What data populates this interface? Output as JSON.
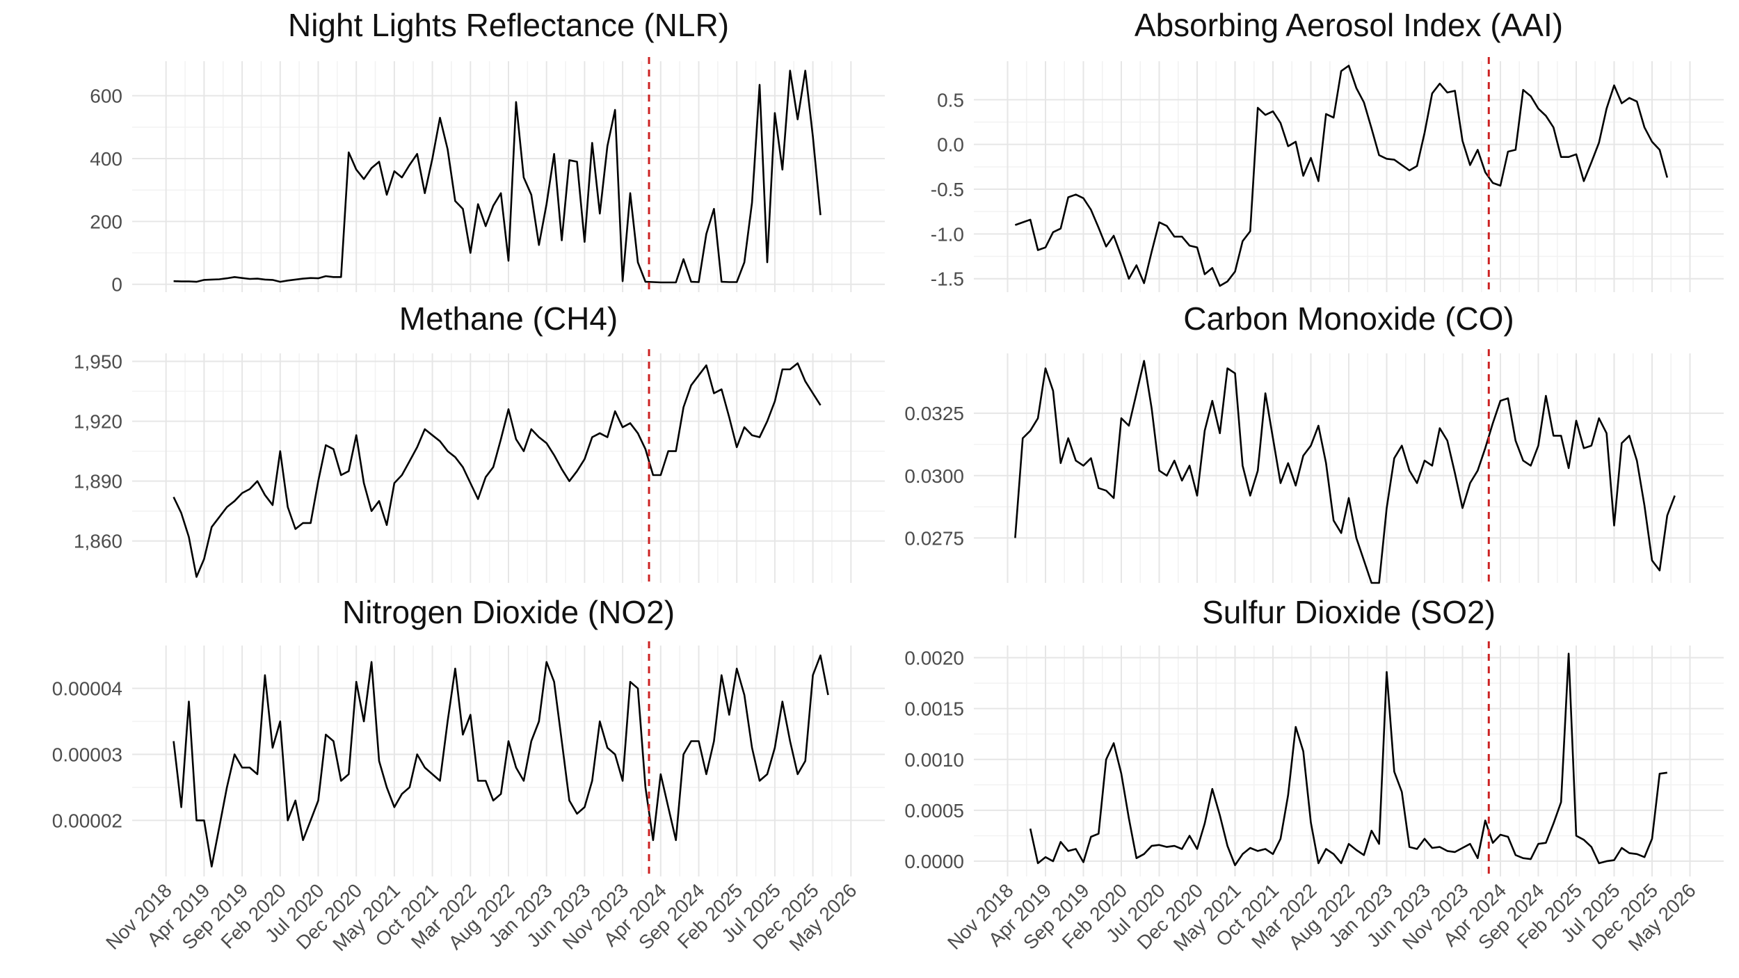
{
  "colors": {
    "series": "#000000",
    "event_line": "#cc2222",
    "grid": "#e6e6e6",
    "background": "#ffffff"
  },
  "x_axis": {
    "start": "2018-11",
    "end": "2026-05",
    "tick_dates": [
      "2018-11",
      "2019-04",
      "2019-09",
      "2020-02",
      "2020-07",
      "2020-12",
      "2021-05",
      "2021-10",
      "2022-03",
      "2022-08",
      "2023-01",
      "2023-06",
      "2023-11",
      "2024-04",
      "2024-09",
      "2025-02",
      "2025-07",
      "2025-12",
      "2026-05"
    ],
    "tick_labels": [
      "Nov 2018",
      "Apr 2019",
      "Sep 2019",
      "Feb 2020",
      "Jul 2020",
      "Dec 2020",
      "May 2021",
      "Oct 2021",
      "Mar 2022",
      "Aug 2022",
      "Jan 2023",
      "Jun 2023",
      "Nov 2023",
      "Apr 2024",
      "Sep 2024",
      "Feb 2025",
      "Jul 2025",
      "Dec 2025",
      "May 2026"
    ],
    "event_line_date": "2024-02-15"
  },
  "chart_data": [
    {
      "type": "line",
      "title": "Night Lights Reflectance (NLR)",
      "ylim": [
        -25,
        710
      ],
      "y_ticks": [
        0,
        200,
        400,
        600
      ],
      "y_tick_labels": [
        "0",
        "200",
        "400",
        "600"
      ],
      "grid": true,
      "start": "2018-12",
      "values": [
        10,
        9,
        9,
        8,
        14,
        15,
        16,
        19,
        23,
        20,
        17,
        18,
        15,
        14,
        8,
        12,
        15,
        18,
        20,
        19,
        26,
        23,
        23,
        420,
        365,
        335,
        370,
        390,
        285,
        360,
        340,
        380,
        415,
        290,
        400,
        530,
        430,
        265,
        240,
        100,
        255,
        185,
        250,
        290,
        75,
        580,
        340,
        285,
        125,
        255,
        415,
        140,
        395,
        390,
        135,
        450,
        225,
        440,
        555,
        10,
        290,
        70,
        8,
        7,
        6,
        6,
        6,
        80,
        8,
        7,
        160,
        240,
        8,
        7,
        7,
        70,
        260,
        635,
        70,
        545,
        365,
        680,
        525,
        680,
        470,
        220
      ]
    },
    {
      "type": "line",
      "title": "Absorbing Aerosol Index (AAI)",
      "ylim": [
        -1.65,
        0.93
      ],
      "y_ticks": [
        -1.5,
        -1.0,
        -0.5,
        0.0,
        0.5
      ],
      "y_tick_labels": [
        "-1.5",
        "-1.0",
        "-0.5",
        "0.0",
        "0.5"
      ],
      "grid": true,
      "start": "2018-12",
      "values": [
        -0.9,
        -0.87,
        -0.84,
        -1.18,
        -1.15,
        -0.98,
        -0.94,
        -0.59,
        -0.56,
        -0.6,
        -0.73,
        -0.93,
        -1.14,
        -1.02,
        -1.25,
        -1.5,
        -1.35,
        -1.55,
        -1.2,
        -0.87,
        -0.91,
        -1.03,
        -1.03,
        -1.13,
        -1.15,
        -1.45,
        -1.38,
        -1.58,
        -1.53,
        -1.42,
        -1.08,
        -0.97,
        0.41,
        0.33,
        0.37,
        0.24,
        -0.02,
        0.03,
        -0.35,
        -0.15,
        -0.41,
        0.34,
        0.3,
        0.82,
        0.88,
        0.63,
        0.47,
        0.18,
        -0.12,
        -0.16,
        -0.17,
        -0.23,
        -0.29,
        -0.24,
        0.13,
        0.57,
        0.68,
        0.58,
        0.6,
        0.04,
        -0.23,
        -0.06,
        -0.31,
        -0.43,
        -0.46,
        -0.08,
        -0.06,
        0.61,
        0.54,
        0.4,
        0.32,
        0.19,
        -0.14,
        -0.14,
        -0.11,
        -0.41,
        -0.2,
        0.02,
        0.4,
        0.66,
        0.46,
        0.52,
        0.48,
        0.19,
        0.03,
        -0.06,
        -0.37
      ]
    },
    {
      "type": "line",
      "title": "Methane (CH4)",
      "ylim": [
        1839,
        1954
      ],
      "y_ticks": [
        1860,
        1890,
        1920,
        1950
      ],
      "y_tick_labels": [
        "1,860",
        "1,890",
        "1,920",
        "1,950"
      ],
      "grid": true,
      "start": "2018-12",
      "values": [
        1882,
        1874,
        1862,
        1842,
        1851,
        1867,
        1872,
        1877,
        1880,
        1884,
        1886,
        1890,
        1883,
        1878,
        1905,
        1877,
        1866,
        1869,
        1869,
        1890,
        1908,
        1906,
        1893,
        1895,
        1913,
        1889,
        1875,
        1880,
        1868,
        1889,
        1893,
        1900,
        1907,
        1916,
        1913,
        1910,
        1905,
        1902,
        1897,
        1889,
        1881,
        1892,
        1897,
        1911,
        1926,
        1911,
        1905,
        1916,
        1912,
        1909,
        1903,
        1896,
        1890,
        1895,
        1901,
        1912,
        1914,
        1912,
        1925,
        1917,
        1919,
        1914,
        1906,
        1893,
        1893,
        1905,
        1905,
        1927,
        1938,
        1943,
        1948,
        1934,
        1936,
        1922,
        1907,
        1917,
        1913,
        1912,
        1920,
        1930,
        1946,
        1946,
        1949,
        1940,
        1934,
        1928
      ]
    },
    {
      "type": "line",
      "title": "Carbon Monoxide (CO)",
      "ylim": [
        0.0257,
        0.0349
      ],
      "y_ticks": [
        0.0275,
        0.03,
        0.0325
      ],
      "y_tick_labels": [
        "0.0275",
        "0.0300",
        "0.0325"
      ],
      "grid": true,
      "start": "2018-12",
      "values": [
        0.0275,
        0.0315,
        0.0318,
        0.0323,
        0.0343,
        0.0334,
        0.0305,
        0.0315,
        0.0306,
        0.0304,
        0.0307,
        0.0295,
        0.0294,
        0.0291,
        0.0323,
        0.032,
        0.0333,
        0.0346,
        0.0327,
        0.0302,
        0.03,
        0.0306,
        0.0298,
        0.0304,
        0.0292,
        0.0318,
        0.033,
        0.0317,
        0.0343,
        0.0341,
        0.0304,
        0.0292,
        0.0302,
        0.0333,
        0.0315,
        0.0297,
        0.0305,
        0.0296,
        0.0308,
        0.0312,
        0.032,
        0.0305,
        0.0282,
        0.0277,
        0.0291,
        0.0275,
        0.0266,
        0.0257,
        0.0257,
        0.0287,
        0.0307,
        0.0312,
        0.0302,
        0.0297,
        0.0306,
        0.0304,
        0.0319,
        0.0314,
        0.0301,
        0.0287,
        0.0297,
        0.0302,
        0.0311,
        0.0321,
        0.033,
        0.0331,
        0.0314,
        0.0306,
        0.0304,
        0.0312,
        0.0332,
        0.0316,
        0.0316,
        0.0303,
        0.0322,
        0.0311,
        0.0312,
        0.0323,
        0.0317,
        0.028,
        0.0313,
        0.0316,
        0.0306,
        0.0288,
        0.0266,
        0.0262,
        0.0284,
        0.0292
      ]
    },
    {
      "type": "line",
      "title": "Nitrogen Dioxide (NO2)",
      "ylim": [
        1.15e-05,
        4.65e-05
      ],
      "y_ticks": [
        2e-05,
        3e-05,
        4e-05
      ],
      "y_tick_labels": [
        "0.00002",
        "0.00003",
        "0.00004"
      ],
      "grid": true,
      "start": "2018-12",
      "values": [
        3.2e-05,
        2.2e-05,
        3.8e-05,
        2e-05,
        2e-05,
        1.3e-05,
        1.9e-05,
        2.5e-05,
        3e-05,
        2.8e-05,
        2.8e-05,
        2.7e-05,
        4.2e-05,
        3.1e-05,
        3.5e-05,
        2e-05,
        2.3e-05,
        1.7e-05,
        2e-05,
        2.3e-05,
        3.3e-05,
        3.2e-05,
        2.6e-05,
        2.7e-05,
        4.1e-05,
        3.5e-05,
        4.4e-05,
        2.9e-05,
        2.5e-05,
        2.2e-05,
        2.4e-05,
        2.5e-05,
        3e-05,
        2.8e-05,
        2.7e-05,
        2.6e-05,
        3.5e-05,
        4.3e-05,
        3.3e-05,
        3.6e-05,
        2.6e-05,
        2.6e-05,
        2.3e-05,
        2.4e-05,
        3.2e-05,
        2.8e-05,
        2.6e-05,
        3.2e-05,
        3.5e-05,
        4.4e-05,
        4.1e-05,
        3.2e-05,
        2.3e-05,
        2.1e-05,
        2.2e-05,
        2.6e-05,
        3.5e-05,
        3.1e-05,
        3e-05,
        2.6e-05,
        4.1e-05,
        4e-05,
        2.5e-05,
        1.7e-05,
        2.7e-05,
        2.2e-05,
        1.7e-05,
        3e-05,
        3.2e-05,
        3.2e-05,
        2.7e-05,
        3.2e-05,
        4.2e-05,
        3.6e-05,
        4.3e-05,
        3.9e-05,
        3.1e-05,
        2.6e-05,
        2.7e-05,
        3.1e-05,
        3.8e-05,
        3.2e-05,
        2.7e-05,
        2.9e-05,
        4.2e-05,
        4.5e-05,
        3.9e-05
      ]
    },
    {
      "type": "line",
      "title": "Sulfur Dioxide (SO2)",
      "ylim": [
        -0.00015,
        0.00212
      ],
      "y_ticks": [
        0.0,
        0.0005,
        0.001,
        0.0015,
        0.002
      ],
      "y_tick_labels": [
        "0.0000",
        "0.0005",
        "0.0010",
        "0.0015",
        "0.0020"
      ],
      "grid": true,
      "start": "2019-02",
      "values": [
        0.00032,
        -2e-05,
        4e-05,
        0.0,
        0.00019,
        0.0001,
        0.00012,
        -1e-05,
        0.00024,
        0.00027,
        0.001,
        0.00116,
        0.00086,
        0.00042,
        3e-05,
        7e-05,
        0.00015,
        0.00016,
        0.00014,
        0.00015,
        0.00012,
        0.00025,
        0.00012,
        0.00037,
        0.00071,
        0.00045,
        0.00015,
        -4e-05,
        7e-05,
        0.00013,
        0.0001,
        0.00012,
        7e-05,
        0.00022,
        0.00065,
        0.00132,
        0.00108,
        0.00038,
        -2e-05,
        0.00012,
        7e-05,
        -2e-05,
        0.00017,
        0.00011,
        6e-05,
        0.0003,
        0.00017,
        0.00186,
        0.00088,
        0.00068,
        0.00014,
        0.00012,
        0.00022,
        0.00013,
        0.00014,
        0.0001,
        9e-05,
        0.00013,
        0.00017,
        3e-05,
        0.0004,
        0.00018,
        0.00026,
        0.00024,
        6e-05,
        3e-05,
        2e-05,
        0.00017,
        0.00018,
        0.00037,
        0.00058,
        0.00204,
        0.00025,
        0.00021,
        0.00014,
        -2e-05,
        0.0,
        1e-05,
        0.00013,
        8e-05,
        7e-05,
        4e-05,
        0.00022,
        0.00086,
        0.00087
      ]
    }
  ]
}
